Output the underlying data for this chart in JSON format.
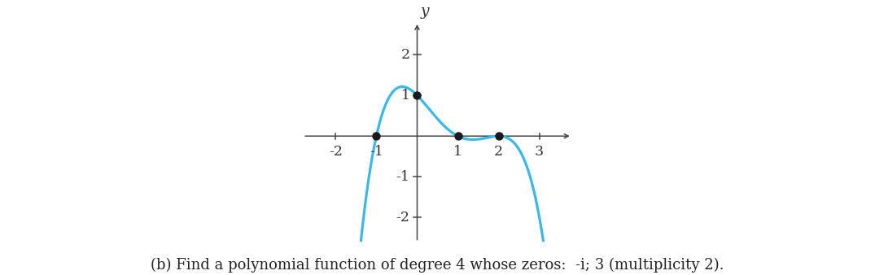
{
  "ylabel": "y",
  "xlim": [
    -2.8,
    3.8
  ],
  "ylim": [
    -2.6,
    2.8
  ],
  "xticks": [
    -2,
    -1,
    1,
    2,
    3
  ],
  "yticks": [
    -2,
    -1,
    1,
    2
  ],
  "dot_points": [
    [
      -1,
      0
    ],
    [
      0,
      1
    ],
    [
      1,
      0
    ],
    [
      2,
      0
    ]
  ],
  "curve_color": "#3ab8ed",
  "dot_color": "#1a1a1a",
  "arrow_color": "#3ab8ed",
  "text_label": "(b) Find a polynomial function of degree 4 whose zeros:  -i; 3 (multiplicity 2).",
  "text_fontsize": 13,
  "axis_color": "#444444",
  "curve_xmin": -2.45,
  "curve_xmax": 3.28,
  "curve_lw": 2.3,
  "background_color": "#ffffff"
}
